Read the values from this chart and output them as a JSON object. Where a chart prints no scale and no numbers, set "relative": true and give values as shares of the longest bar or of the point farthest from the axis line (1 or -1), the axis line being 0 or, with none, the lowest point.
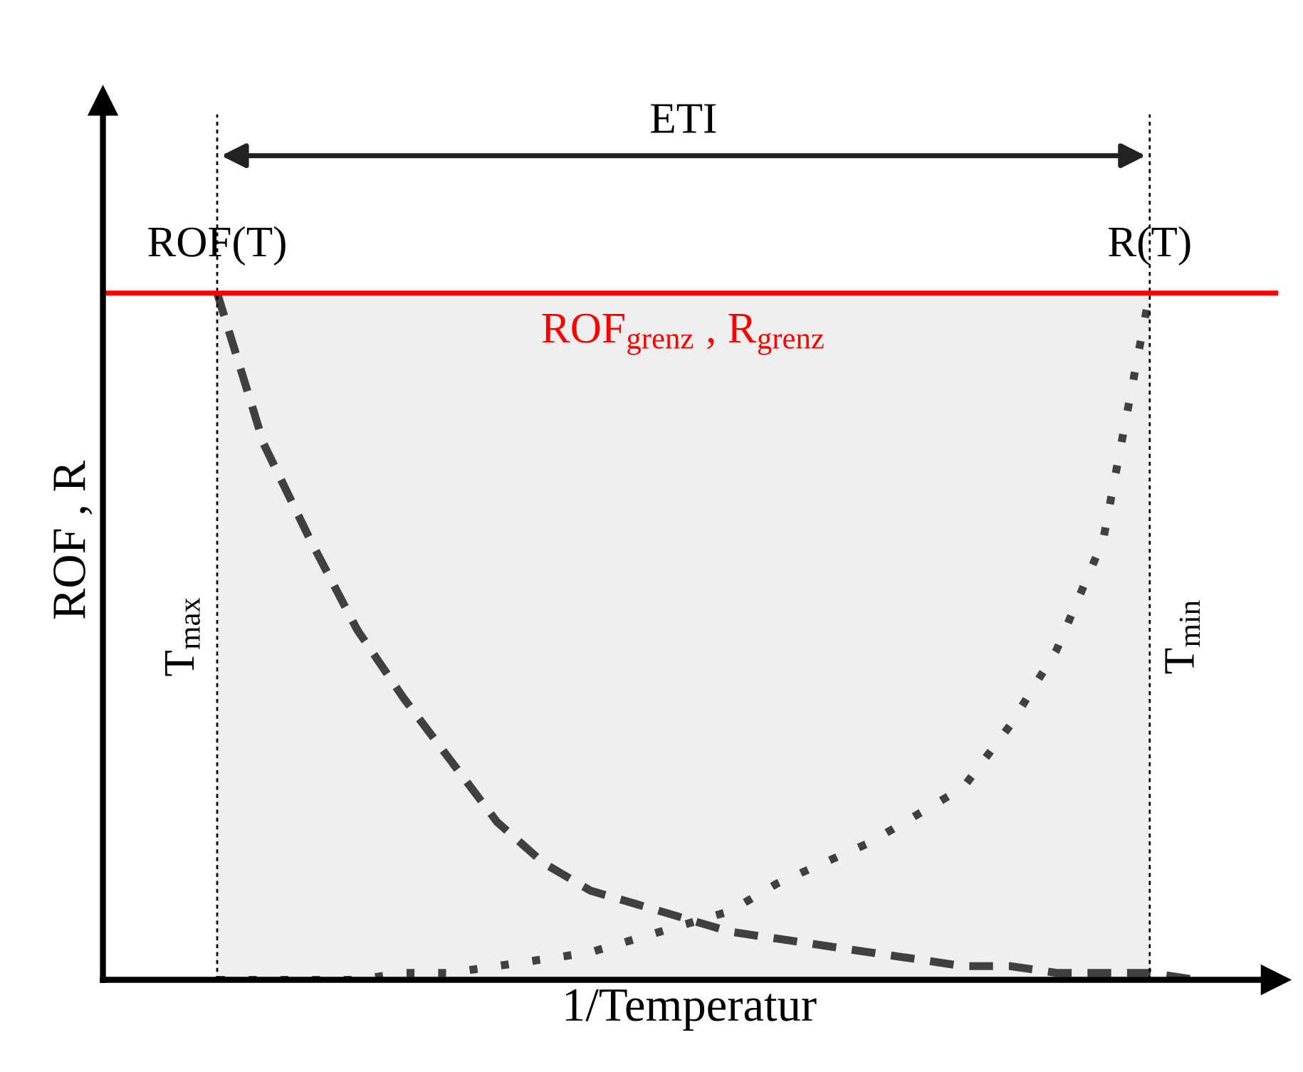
{
  "chart_data": {
    "type": "line",
    "relative": true,
    "xlabel": "1/Temperatur",
    "ylabel": "ROF , R",
    "categories": [
      null,
      null,
      null,
      null,
      null,
      null,
      null,
      null,
      null,
      null,
      null,
      null,
      null,
      null,
      null,
      null,
      null,
      null,
      null,
      null,
      null,
      null
    ],
    "series": [
      {
        "color": "#404040",
        "line_style": "dashed",
        "values": [
          1.0,
          0.78,
          0.64,
          0.51,
          0.41,
          0.32,
          0.23,
          0.17,
          0.13,
          0.11,
          0.09,
          0.07,
          0.06,
          0.05,
          0.04,
          0.03,
          0.02,
          0.02,
          0.01,
          0.01,
          0.01,
          0.0
        ]
      },
      {
        "color": "#404040",
        "line_style": "dotted",
        "values": [
          0.0,
          0.0,
          0.0,
          0.0,
          0.01,
          0.01,
          0.02,
          0.03,
          0.04,
          0.06,
          0.08,
          0.1,
          0.14,
          0.17,
          0.2,
          0.24,
          0.28,
          0.37,
          0.48,
          0.64,
          1.0,
          null
        ]
      }
    ],
    "ref_lines": [
      {
        "axis": "y",
        "value": 1,
        "label": "ROF$_{grenz}$ , R$_{grenz}$",
        "color": "#ff0000",
        "line_style": "solid"
      }
    ],
    "annotations": [
      "ETI",
      "ROF(T)",
      "R(T)",
      "T$_{max}$",
      "T$_{min}$"
    ],
    "legend": false
  }
}
